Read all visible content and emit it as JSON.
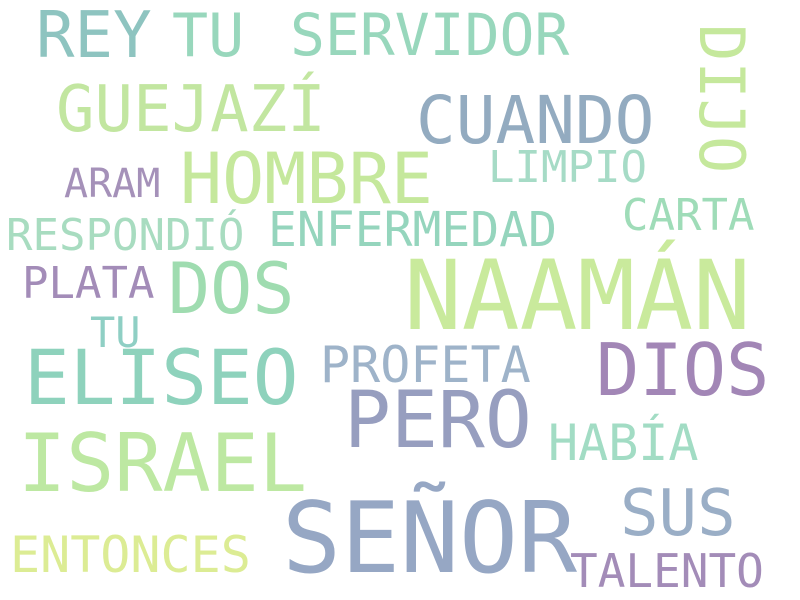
{
  "palette": {
    "teal": "#8ecfbe",
    "mint": "#9fdcb0",
    "lime": "#c5e89c",
    "pale_lime": "#dcec94",
    "slate": "#9fb2c8",
    "steel": "#8fa6bf",
    "lavender": "#9e8bb5",
    "grey_blue": "#97a2b8"
  },
  "words": [
    {
      "id": "rey",
      "text": "REY",
      "color": "#8ec4c0"
    },
    {
      "id": "tu-top",
      "text": "TU",
      "color": "#98d7bc"
    },
    {
      "id": "servidor",
      "text": "SERVIDOR",
      "color": "#98d7bc"
    },
    {
      "id": "dijo",
      "text": "DIJO",
      "color": "#c5e89c"
    },
    {
      "id": "guejazi",
      "text": "GUEJAZÍ",
      "color": "#c2e6a0"
    },
    {
      "id": "cuando",
      "text": "CUANDO",
      "color": "#93abc0"
    },
    {
      "id": "hombre",
      "text": "HOMBRE",
      "color": "#c5e89c"
    },
    {
      "id": "limpio",
      "text": "LIMPIO",
      "color": "#a6dbc6"
    },
    {
      "id": "aram",
      "text": "ARAM",
      "color": "#a591b9"
    },
    {
      "id": "carta",
      "text": "CARTA",
      "color": "#9fdcb8"
    },
    {
      "id": "respondio",
      "text": "RESPONDIÓ",
      "color": "#a8dcc0"
    },
    {
      "id": "enfermedad",
      "text": "ENFERMEDAD",
      "color": "#95d5bd"
    },
    {
      "id": "plata",
      "text": "PLATA",
      "color": "#a38cb8"
    },
    {
      "id": "dos",
      "text": "DOS",
      "color": "#9fdcb0"
    },
    {
      "id": "naaman",
      "text": "NAAMÁN",
      "color": "#c9ea9c"
    },
    {
      "id": "tu-mid",
      "text": "TU",
      "color": "#8fcfc4"
    },
    {
      "id": "eliseo",
      "text": "ELISEO",
      "color": "#8ed2bc"
    },
    {
      "id": "profeta",
      "text": "PROFETA",
      "color": "#9eb3c9"
    },
    {
      "id": "dios",
      "text": "DIOS",
      "color": "#a286b6"
    },
    {
      "id": "pero",
      "text": "PERO",
      "color": "#979ebf"
    },
    {
      "id": "israel",
      "text": "ISRAEL",
      "color": "#bde8a2"
    },
    {
      "id": "habia",
      "text": "HABÍA",
      "color": "#a2dcc4"
    },
    {
      "id": "sus",
      "text": "SUS",
      "color": "#9aaec6"
    },
    {
      "id": "senor",
      "text": "SEÑOR",
      "color": "#96a7c4"
    },
    {
      "id": "entonces",
      "text": "ENTONCES",
      "color": "#dcec94"
    },
    {
      "id": "talento",
      "text": "TALENTO",
      "color": "#a38cb8"
    }
  ]
}
